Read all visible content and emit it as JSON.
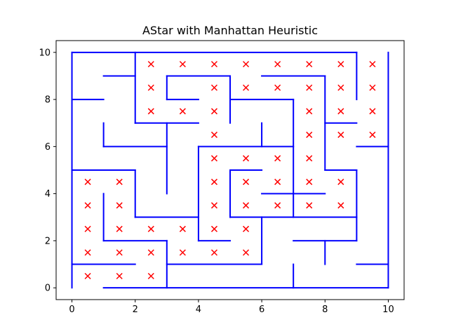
{
  "chart_data": {
    "type": "scatter",
    "title": "AStar with Manhattan Heuristic",
    "xlabel": "",
    "ylabel": "",
    "xlim": [
      -0.5,
      10.5
    ],
    "ylim": [
      -0.5,
      10.5
    ],
    "xticks": [
      0,
      2,
      4,
      6,
      8,
      10
    ],
    "yticks": [
      0,
      2,
      4,
      6,
      8,
      10
    ],
    "xtick_labels": [
      "0",
      "2",
      "4",
      "6",
      "8",
      "10"
    ],
    "ytick_labels": [
      "0",
      "2",
      "4",
      "6",
      "8",
      "10"
    ],
    "grid": false,
    "colors": {
      "walls": "#0000ff",
      "markers": "#ff0000",
      "axes": "#000000"
    },
    "walls": [
      [
        [
          0,
          10
        ],
        [
          9,
          10
        ]
      ],
      [
        [
          9,
          10
        ],
        [
          9,
          8
        ]
      ],
      [
        [
          10,
          10
        ],
        [
          10,
          0
        ]
      ],
      [
        [
          1,
          0
        ],
        [
          10,
          0
        ]
      ],
      [
        [
          9,
          1
        ],
        [
          10,
          1
        ]
      ],
      [
        [
          9,
          6
        ],
        [
          10,
          6
        ]
      ],
      [
        [
          0,
          10
        ],
        [
          0,
          0
        ]
      ],
      [
        [
          0,
          8
        ],
        [
          1,
          8
        ]
      ],
      [
        [
          1,
          9
        ],
        [
          2,
          9
        ]
      ],
      [
        [
          2,
          10
        ],
        [
          2,
          7
        ]
      ],
      [
        [
          2,
          7
        ],
        [
          4,
          7
        ]
      ],
      [
        [
          3,
          7
        ],
        [
          3,
          4
        ]
      ],
      [
        [
          1,
          7
        ],
        [
          1,
          6
        ]
      ],
      [
        [
          1,
          6
        ],
        [
          3,
          6
        ]
      ],
      [
        [
          3,
          9
        ],
        [
          5,
          9
        ]
      ],
      [
        [
          3,
          9
        ],
        [
          3,
          8
        ]
      ],
      [
        [
          3,
          8
        ],
        [
          4,
          8
        ]
      ],
      [
        [
          5,
          9
        ],
        [
          5,
          7
        ]
      ],
      [
        [
          5,
          8
        ],
        [
          7,
          8
        ]
      ],
      [
        [
          7,
          8
        ],
        [
          7,
          3
        ]
      ],
      [
        [
          4,
          6
        ],
        [
          7,
          6
        ]
      ],
      [
        [
          6,
          7
        ],
        [
          6,
          6
        ]
      ],
      [
        [
          4,
          6
        ],
        [
          4,
          2
        ]
      ],
      [
        [
          4,
          2
        ],
        [
          5,
          2
        ]
      ],
      [
        [
          6,
          9
        ],
        [
          8,
          9
        ]
      ],
      [
        [
          8,
          9
        ],
        [
          8,
          5
        ]
      ],
      [
        [
          8,
          7
        ],
        [
          9,
          7
        ]
      ],
      [
        [
          8,
          5
        ],
        [
          9,
          5
        ]
      ],
      [
        [
          9,
          5
        ],
        [
          9,
          2
        ]
      ],
      [
        [
          0,
          5
        ],
        [
          2,
          5
        ]
      ],
      [
        [
          2,
          5
        ],
        [
          2,
          3
        ]
      ],
      [
        [
          2,
          3
        ],
        [
          4,
          3
        ]
      ],
      [
        [
          1,
          4
        ],
        [
          1,
          2
        ]
      ],
      [
        [
          1,
          2
        ],
        [
          3,
          2
        ]
      ],
      [
        [
          3,
          2
        ],
        [
          3,
          0
        ]
      ],
      [
        [
          0,
          1
        ],
        [
          2,
          1
        ]
      ],
      [
        [
          3,
          1
        ],
        [
          6,
          1
        ]
      ],
      [
        [
          6,
          1
        ],
        [
          6,
          3
        ]
      ],
      [
        [
          5,
          5
        ],
        [
          6,
          5
        ]
      ],
      [
        [
          5,
          5
        ],
        [
          5,
          3
        ]
      ],
      [
        [
          5,
          3
        ],
        [
          9,
          3
        ]
      ],
      [
        [
          6,
          4
        ],
        [
          8,
          4
        ]
      ],
      [
        [
          7,
          2
        ],
        [
          9,
          2
        ]
      ],
      [
        [
          8,
          2
        ],
        [
          8,
          1
        ]
      ],
      [
        [
          7,
          1
        ],
        [
          7,
          0
        ]
      ]
    ],
    "series": [
      {
        "marker": "x",
        "points": [
          [
            2.5,
            9.5
          ],
          [
            3.5,
            9.5
          ],
          [
            4.5,
            9.5
          ],
          [
            5.5,
            9.5
          ],
          [
            6.5,
            9.5
          ],
          [
            7.5,
            9.5
          ],
          [
            8.5,
            9.5
          ],
          [
            9.5,
            9.5
          ],
          [
            2.5,
            8.5
          ],
          [
            4.5,
            8.5
          ],
          [
            5.5,
            8.5
          ],
          [
            6.5,
            8.5
          ],
          [
            7.5,
            8.5
          ],
          [
            8.5,
            8.5
          ],
          [
            9.5,
            8.5
          ],
          [
            2.5,
            7.5
          ],
          [
            3.5,
            7.5
          ],
          [
            4.5,
            7.5
          ],
          [
            7.5,
            7.5
          ],
          [
            8.5,
            7.5
          ],
          [
            9.5,
            7.5
          ],
          [
            4.5,
            6.5
          ],
          [
            7.5,
            6.5
          ],
          [
            8.5,
            6.5
          ],
          [
            9.5,
            6.5
          ],
          [
            4.5,
            5.5
          ],
          [
            5.5,
            5.5
          ],
          [
            6.5,
            5.5
          ],
          [
            7.5,
            5.5
          ],
          [
            0.5,
            4.5
          ],
          [
            1.5,
            4.5
          ],
          [
            4.5,
            4.5
          ],
          [
            5.5,
            4.5
          ],
          [
            6.5,
            4.5
          ],
          [
            7.5,
            4.5
          ],
          [
            8.5,
            4.5
          ],
          [
            0.5,
            3.5
          ],
          [
            1.5,
            3.5
          ],
          [
            4.5,
            3.5
          ],
          [
            5.5,
            3.5
          ],
          [
            6.5,
            3.5
          ],
          [
            7.5,
            3.5
          ],
          [
            8.5,
            3.5
          ],
          [
            0.5,
            2.5
          ],
          [
            1.5,
            2.5
          ],
          [
            2.5,
            2.5
          ],
          [
            3.5,
            2.5
          ],
          [
            4.5,
            2.5
          ],
          [
            5.5,
            2.5
          ],
          [
            0.5,
            1.5
          ],
          [
            1.5,
            1.5
          ],
          [
            2.5,
            1.5
          ],
          [
            3.5,
            1.5
          ],
          [
            4.5,
            1.5
          ],
          [
            5.5,
            1.5
          ],
          [
            0.5,
            0.5
          ],
          [
            1.5,
            0.5
          ],
          [
            2.5,
            0.5
          ]
        ]
      }
    ]
  }
}
